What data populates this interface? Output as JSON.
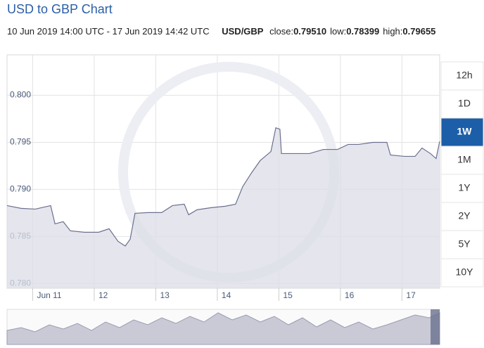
{
  "chart_data": {
    "type": "line",
    "title": "USD to GBP Chart",
    "subtitle": "10 Jun 2019 14:00 UTC - 17 Jun 2019 14:42 UTC",
    "pair": "USD/GBP",
    "stats": [
      {
        "label": "close:",
        "value": 0.7951,
        "value_label": "0.79510"
      },
      {
        "label": "low:",
        "value": 0.78399,
        "value_label": "0.78399"
      },
      {
        "label": "high:",
        "value": 0.79655,
        "value_label": "0.79655"
      }
    ],
    "range_buttons": [
      "12h",
      "1D",
      "1W",
      "1M",
      "1Y",
      "2Y",
      "5Y",
      "10Y"
    ],
    "active_range": "1W",
    "x": [
      0,
      5.5,
      11,
      17,
      18.7,
      21.9,
      24.7,
      30.2,
      35.7,
      39.8,
      43.3,
      46.1,
      48,
      49.9,
      54.9,
      60.3,
      64.5,
      69.1,
      70.8,
      74.1,
      79.6,
      85,
      89.1,
      91.9,
      95.4,
      98.7,
      102.9,
      104.8,
      106.4,
      107,
      112.5,
      117.9,
      123.4,
      128.9,
      133,
      137.1,
      142.6,
      148.1,
      149.5,
      155,
      159.1,
      161.8,
      165.1,
      167.3,
      168.7
    ],
    "series": [
      {
        "name": "USD/GBP",
        "color": "#6b6f8e",
        "fill": "#dcdde7",
        "values": [
          0.78828,
          0.78799,
          0.78791,
          0.78828,
          0.78634,
          0.78657,
          0.7856,
          0.78545,
          0.78545,
          0.78582,
          0.78448,
          0.78399,
          0.7847,
          0.78746,
          0.78754,
          0.78754,
          0.78828,
          0.78843,
          0.78731,
          0.78784,
          0.78806,
          0.78821,
          0.78843,
          0.7903,
          0.79179,
          0.79306,
          0.79403,
          0.79655,
          0.7964,
          0.79381,
          0.79381,
          0.79381,
          0.79425,
          0.79425,
          0.79478,
          0.79478,
          0.795,
          0.795,
          0.79366,
          0.79351,
          0.79351,
          0.7944,
          0.79381,
          0.79328,
          0.7951
        ]
      }
    ],
    "xlim": [
      0,
      168.7
    ],
    "xticks": [
      {
        "value": 10,
        "label": "Jun 11"
      },
      {
        "value": 34,
        "label": "12"
      },
      {
        "value": 58,
        "label": "13"
      },
      {
        "value": 82,
        "label": "14"
      },
      {
        "value": 106,
        "label": "15"
      },
      {
        "value": 130,
        "label": "16"
      },
      {
        "value": 154,
        "label": "17"
      }
    ],
    "ylim": [
      0.7795,
      0.8043
    ],
    "yticks": [
      {
        "value": 0.8,
        "label": "0.800"
      },
      0.795,
      {
        "value": 0.79,
        "label": "0.790"
      },
      0.785,
      {
        "value": 0.78,
        "label": "0.780"
      }
    ],
    "grid": true
  }
}
